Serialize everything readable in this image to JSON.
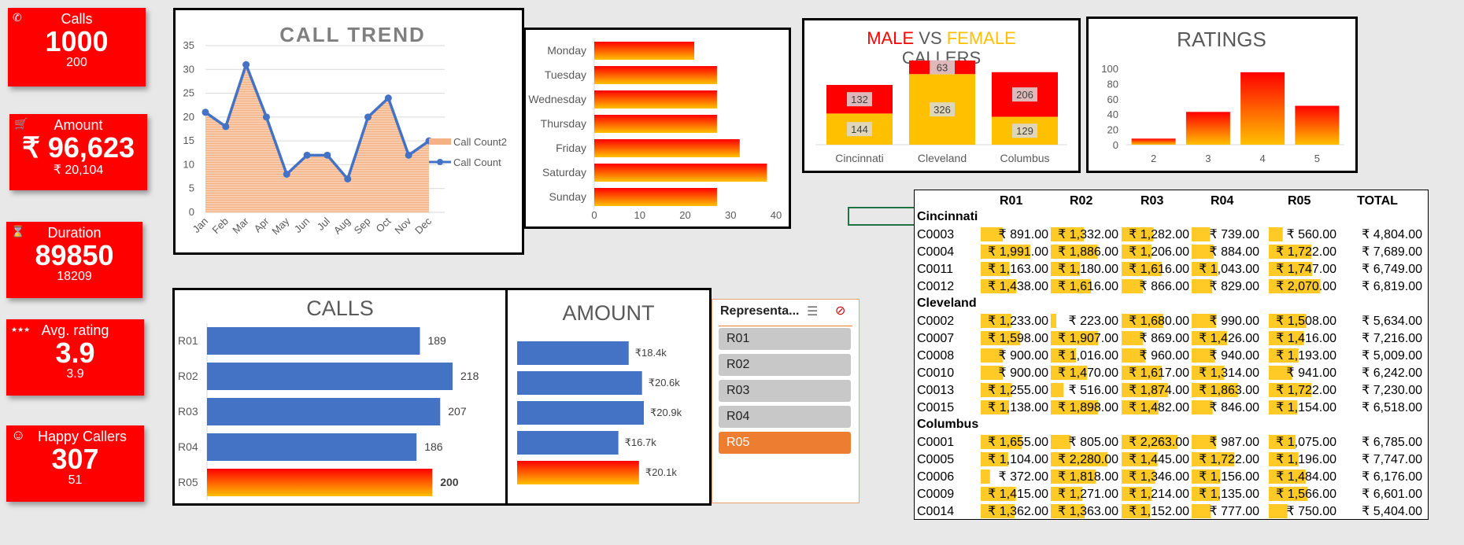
{
  "kpis": [
    {
      "icon": "phone-icon",
      "glyph": "✆",
      "title": "Calls",
      "value": "1000",
      "sub": "200"
    },
    {
      "icon": "cart-icon",
      "glyph": "🛒",
      "title": "Amount",
      "value": "₹ 96,623",
      "sub": "₹ 20,104"
    },
    {
      "icon": "hourglass-icon",
      "glyph": "⌛",
      "title": "Duration",
      "value": "89850",
      "sub": "18209"
    },
    {
      "icon": "stars-icon",
      "glyph": "★★★",
      "title": "Avg. rating",
      "value": "3.9",
      "sub": "3.9"
    },
    {
      "icon": "smiley-icon",
      "glyph": "☺",
      "title": "Happy Callers",
      "value": "307",
      "sub": "51"
    }
  ],
  "colors": {
    "kpi_red": "#ff0000",
    "blue": "#4472c4",
    "orange": "#ed7d31",
    "grad_top": "#ff0000",
    "grad_bottom": "#ffc000",
    "area": "#f4b183",
    "gray_text": "#595959"
  },
  "slicer": {
    "title": "Representa...",
    "items": [
      "R01",
      "R02",
      "R03",
      "R04",
      "R05"
    ],
    "selected": "R05"
  },
  "chart_data": [
    {
      "id": "call_trend",
      "type": "line",
      "title": "CALL TREND",
      "categories": [
        "Jan",
        "Feb",
        "Mar",
        "Apr",
        "May",
        "Jun",
        "Jul",
        "Aug",
        "Sep",
        "Oct",
        "Nov",
        "Dec"
      ],
      "series": [
        {
          "name": "Call Count2",
          "type": "area",
          "values": [
            21,
            18,
            31,
            20,
            8,
            12,
            12,
            7,
            20,
            24,
            12,
            15
          ]
        },
        {
          "name": "Call Count",
          "type": "line",
          "values": [
            21,
            18,
            31,
            20,
            8,
            12,
            12,
            7,
            20,
            24,
            12,
            15
          ]
        }
      ],
      "ylim": [
        0,
        35
      ],
      "yticks": [
        0,
        5,
        10,
        15,
        20,
        25,
        30,
        35
      ],
      "legend": "right",
      "grid": true
    },
    {
      "id": "weekday",
      "type": "bar",
      "orientation": "horizontal",
      "categories": [
        "Monday",
        "Tuesday",
        "Wednesday",
        "Thursday",
        "Friday",
        "Saturday",
        "Sunday"
      ],
      "values": [
        22,
        27,
        27,
        27,
        32,
        38,
        27
      ],
      "xlim": [
        0,
        40
      ],
      "xticks": [
        0,
        10,
        20,
        30,
        40
      ]
    },
    {
      "id": "gender",
      "type": "bar",
      "stacked": true,
      "title": "MALE VS FEMALE CALLERS",
      "title_parts": [
        {
          "text": "MALE",
          "color": "#ff0000"
        },
        {
          "text": " VS ",
          "color": "#595959"
        },
        {
          "text": "FEMALE",
          "color": "#ffc000"
        },
        {
          "text": "CALLERS",
          "color": "#595959"
        }
      ],
      "categories": [
        "Cincinnati",
        "Cleveland",
        "Columbus"
      ],
      "series": [
        {
          "values": [
            144,
            326,
            129
          ],
          "color": "#ffc000"
        },
        {
          "values": [
            132,
            63,
            206
          ],
          "color": "#ff0000"
        }
      ]
    },
    {
      "id": "ratings",
      "type": "bar",
      "title": "RATINGS",
      "categories": [
        "2",
        "3",
        "4",
        "5"
      ],
      "values": [
        8,
        43,
        95,
        51
      ],
      "ylim": [
        0,
        100
      ],
      "yticks": [
        0,
        20,
        40,
        60,
        80,
        100
      ]
    },
    {
      "id": "calls",
      "type": "bar",
      "orientation": "horizontal",
      "title": "CALLS",
      "categories": [
        "R01",
        "R02",
        "R03",
        "R04",
        "R05"
      ],
      "values": [
        189,
        218,
        207,
        186,
        200
      ],
      "labels": [
        "189",
        "218",
        "207",
        "186",
        "200"
      ]
    },
    {
      "id": "amount",
      "type": "bar",
      "orientation": "horizontal",
      "title": "AMOUNT",
      "values": [
        18.4,
        20.6,
        20.9,
        16.7,
        20.1
      ],
      "labels": [
        "₹18.4k",
        "₹20.6k",
        "₹20.9k",
        "₹16.7k",
        "₹20.1k"
      ]
    }
  ],
  "pivot": {
    "headers": [
      "",
      "R01",
      "R02",
      "R03",
      "R04",
      "R05",
      "TOTAL"
    ],
    "groups": [
      {
        "name": "Cincinnati",
        "rows": [
          {
            "id": "C0003",
            "vals": [
              891,
              1332,
              1282,
              739,
              560
            ],
            "total": "₹ 4,804.00"
          },
          {
            "id": "C0004",
            "vals": [
              1991,
              1886,
              1206,
              884,
              1722
            ],
            "total": "₹ 7,689.00"
          },
          {
            "id": "C0011",
            "vals": [
              1163,
              1180,
              1616,
              1043,
              1747
            ],
            "total": "₹ 6,749.00"
          },
          {
            "id": "C0012",
            "vals": [
              1438,
              1616,
              866,
              829,
              2070
            ],
            "total": "₹ 6,819.00"
          }
        ]
      },
      {
        "name": "Cleveland",
        "rows": [
          {
            "id": "C0002",
            "vals": [
              1233,
              223,
              1680,
              990,
              1508
            ],
            "total": "₹ 5,634.00"
          },
          {
            "id": "C0007",
            "vals": [
              1598,
              1907,
              869,
              1426,
              1416
            ],
            "total": "₹ 7,216.00"
          },
          {
            "id": "C0008",
            "vals": [
              900,
              1016,
              960,
              940,
              1193
            ],
            "total": "₹ 5,009.00"
          },
          {
            "id": "C0010",
            "vals": [
              900,
              1470,
              1617,
              1314,
              941
            ],
            "total": "₹ 6,242.00"
          },
          {
            "id": "C0013",
            "vals": [
              1255,
              516,
              1874,
              1863,
              1722
            ],
            "total": "₹ 7,230.00"
          },
          {
            "id": "C0015",
            "vals": [
              1138,
              1898,
              1482,
              846,
              1154
            ],
            "total": "₹ 6,518.00"
          }
        ]
      },
      {
        "name": "Columbus",
        "rows": [
          {
            "id": "C0001",
            "vals": [
              1655,
              805,
              2263,
              987,
              1075
            ],
            "total": "₹ 6,785.00"
          },
          {
            "id": "C0005",
            "vals": [
              1104,
              2280,
              1445,
              1722,
              1196
            ],
            "total": "₹ 7,747.00"
          },
          {
            "id": "C0006",
            "vals": [
              372,
              1818,
              1346,
              1156,
              1484
            ],
            "total": "₹ 6,176.00"
          },
          {
            "id": "C0009",
            "vals": [
              1415,
              1271,
              1214,
              1135,
              1566
            ],
            "total": "₹ 6,601.00"
          },
          {
            "id": "C0014",
            "vals": [
              1362,
              1363,
              1152,
              777,
              750
            ],
            "total": "₹ 5,404.00"
          }
        ]
      }
    ]
  }
}
